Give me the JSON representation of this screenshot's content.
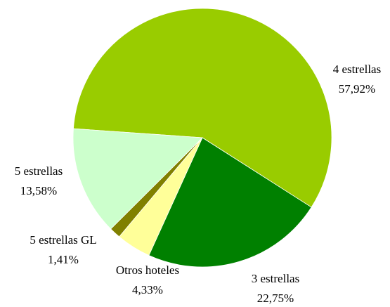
{
  "chart_data": {
    "type": "pie",
    "categories": [
      "4 estrellas",
      "3 estrellas",
      "Otros hoteles",
      "5 estrellas GL",
      "5 estrellas"
    ],
    "values": [
      57.92,
      22.75,
      4.33,
      1.41,
      13.58
    ],
    "value_labels": [
      "57,92%",
      "22,75%",
      "4,33%",
      "1,41%",
      "13,58%"
    ],
    "colors": [
      "#99cc00",
      "#008000",
      "#ffff99",
      "#808000",
      "#ccffcc"
    ]
  }
}
